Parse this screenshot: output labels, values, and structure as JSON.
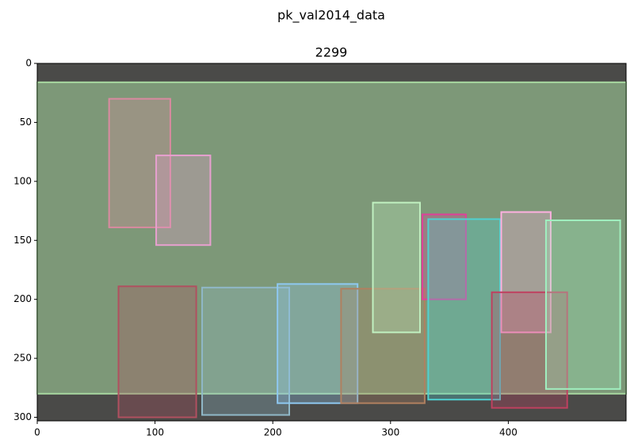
{
  "chart_data": {
    "type": "image",
    "suptitle": "pk_val2014_data",
    "title": "2299",
    "xlim": [
      0,
      500
    ],
    "ylim": [
      303,
      0
    ],
    "xticks": [
      0,
      100,
      200,
      300,
      400
    ],
    "yticks": [
      0,
      50,
      100,
      150,
      200,
      250,
      300
    ],
    "boxes": [
      {
        "x0": 0,
        "y0": 16,
        "x1": 500,
        "y1": 280,
        "color": "#a8d8a0"
      },
      {
        "x0": 61,
        "y0": 30,
        "x1": 113,
        "y1": 139,
        "color": "#d98aa0"
      },
      {
        "x0": 101,
        "y0": 78,
        "x1": 147,
        "y1": 154,
        "color": "#e8a0d0"
      },
      {
        "x0": 69,
        "y0": 189,
        "x1": 135,
        "y1": 300,
        "color": "#b05060"
      },
      {
        "x0": 140,
        "y0": 190,
        "x1": 214,
        "y1": 298,
        "color": "#90b8c8"
      },
      {
        "x0": 204,
        "y0": 187,
        "x1": 272,
        "y1": 288,
        "color": "#8ec8f0"
      },
      {
        "x0": 258,
        "y0": 191,
        "x1": 329,
        "y1": 288,
        "color": "#b08060"
      },
      {
        "x0": 285,
        "y0": 118,
        "x1": 325,
        "y1": 228,
        "color": "#c0f0c0"
      },
      {
        "x0": 327,
        "y0": 128,
        "x1": 364,
        "y1": 200,
        "color": "#e0409a"
      },
      {
        "x0": 332,
        "y0": 132,
        "x1": 393,
        "y1": 285,
        "color": "#50d0d0"
      },
      {
        "x0": 394,
        "y0": 126,
        "x1": 436,
        "y1": 228,
        "color": "#ffb0e0"
      },
      {
        "x0": 386,
        "y0": 194,
        "x1": 450,
        "y1": 292,
        "color": "#c04060"
      },
      {
        "x0": 432,
        "y0": 133,
        "x1": 495,
        "y1": 276,
        "color": "#a0f0c0"
      }
    ]
  }
}
